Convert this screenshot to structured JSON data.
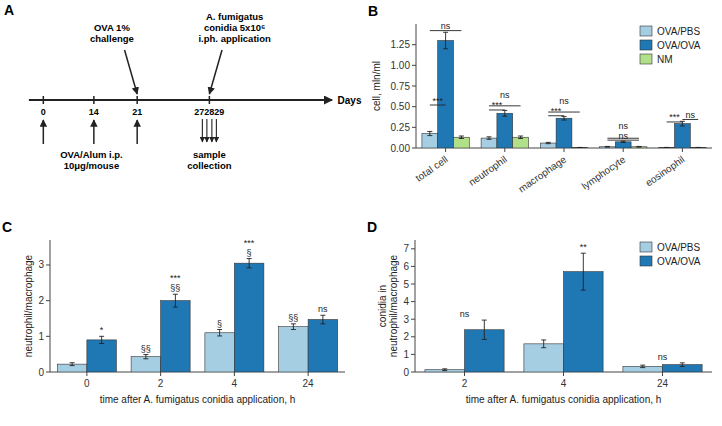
{
  "chart_data": [
    {
      "type": "timeline",
      "title": "A",
      "xlabel": "Days",
      "categories": [
        "0",
        "14",
        "21",
        "272829"
      ],
      "annotations": [
        {
          "text": "OVA 1%\nchallenge",
          "x": [
            "21"
          ],
          "position": "above"
        },
        {
          "text": "A. fumigatus\nconidia 5x10⁶\ni.ph. application",
          "x": [
            "272829"
          ],
          "position": "above"
        },
        {
          "text": "OVA/Alum i.p.\n10μg/mouse",
          "x": [
            "0",
            "14",
            "21"
          ],
          "position": "below"
        },
        {
          "text": "sample\ncollection",
          "x": [
            "272829"
          ],
          "position": "below"
        }
      ]
    },
    {
      "type": "bar",
      "title": "B",
      "ylabel": "cell, mln/ml",
      "categories": [
        "total cell",
        "neutrophil",
        "macrophage",
        "lymphocyte",
        "eosinophil"
      ],
      "series": [
        {
          "name": "OVA/PBS",
          "color": "#a6cee3",
          "values": [
            0.175,
            0.12,
            0.06,
            0.015,
            0.005
          ],
          "errors": [
            0.025,
            0.015,
            0.008,
            0.004,
            0.002
          ]
        },
        {
          "name": "OVA/OVA",
          "color": "#1f78b4",
          "values": [
            1.3,
            0.42,
            0.36,
            0.075,
            0.295
          ],
          "errors": [
            0.1,
            0.035,
            0.022,
            0.008,
            0.028
          ]
        },
        {
          "name": "NM",
          "color": "#b2df8a",
          "values": [
            0.13,
            0.13,
            0.005,
            0.015,
            0.005
          ],
          "errors": [
            0.015,
            0.015,
            0.002,
            0.004,
            0.002
          ]
        }
      ],
      "ylim": [
        0,
        1.5
      ],
      "yticks": [
        {
          "value": 0,
          "label": "0.00"
        },
        0.25,
        {
          "value": 0.5,
          "label": "0.50"
        },
        0.75,
        {
          "value": 1,
          "label": "1.00"
        },
        1.25
      ],
      "legend": "upper right",
      "annotations": [
        {
          "text": "***",
          "x": "total cell",
          "between": [
            "OVA/PBS",
            "OVA/OVA"
          ],
          "y": 0.52
        },
        {
          "text": "ns",
          "x": "total cell",
          "between": [
            "OVA/PBS",
            "NM"
          ],
          "y": 1.42
        },
        {
          "text": "***",
          "x": "neutrophil",
          "between": [
            "OVA/PBS",
            "OVA/OVA"
          ],
          "y": 0.46
        },
        {
          "text": "ns",
          "x": "neutrophil",
          "between": [
            "OVA/PBS",
            "NM"
          ],
          "y": 0.51
        },
        {
          "text": "***",
          "x": "macrophage",
          "between": [
            "OVA/PBS",
            "OVA/OVA"
          ],
          "y": 0.39
        },
        {
          "text": "ns",
          "x": "macrophage",
          "between": [
            "OVA/PBS",
            "NM"
          ],
          "y": 0.435
        },
        {
          "text": "ns",
          "x": "lymphocyte",
          "between": [
            "OVA/PBS",
            "NM"
          ],
          "y": 0.095
        },
        {
          "text": "ns",
          "x": "lymphocyte",
          "between": [
            "OVA/PBS",
            "NM"
          ],
          "y": 0.118
        },
        {
          "text": "***",
          "x": "eosinophil",
          "between": [
            "OVA/PBS",
            "OVA/OVA"
          ],
          "y": 0.315
        },
        {
          "text": "ns",
          "x": "eosinophil",
          "between": [
            "OVA/OVA",
            "NM"
          ],
          "y": 0.345
        }
      ]
    },
    {
      "type": "bar",
      "title": "C",
      "ylabel": "neutrophil/macrophage",
      "xlabel": "time after A. fumigatus conidia application, h",
      "categories": [
        "0",
        "2",
        "4",
        "24"
      ],
      "series": [
        {
          "name": "OVA/PBS",
          "color": "#a6cee3",
          "values": [
            0.22,
            0.43,
            1.1,
            1.27
          ],
          "errors": [
            0.04,
            0.06,
            0.09,
            0.08
          ]
        },
        {
          "name": "OVA/OVA",
          "color": "#1f78b4",
          "values": [
            0.9,
            2.0,
            3.05,
            1.47
          ],
          "errors": [
            0.1,
            0.18,
            0.13,
            0.12
          ]
        }
      ],
      "ylim": [
        0,
        3.7
      ],
      "yticks": [
        0,
        1,
        2,
        3
      ],
      "annotations": [
        {
          "text": "*",
          "x": "0",
          "series": "OVA/OVA"
        },
        {
          "text": "§§",
          "x": "2",
          "series": "OVA/PBS"
        },
        {
          "text": "§§",
          "x": "2",
          "series": "OVA/OVA"
        },
        {
          "text": "***",
          "x": "2",
          "series": "OVA/OVA"
        },
        {
          "text": "§",
          "x": "4",
          "series": "OVA/PBS"
        },
        {
          "text": "§",
          "x": "4",
          "series": "OVA/OVA"
        },
        {
          "text": "***",
          "x": "4",
          "series": "OVA/OVA"
        },
        {
          "text": "§§",
          "x": "24",
          "series": "OVA/PBS"
        },
        {
          "text": "ns",
          "x": "24",
          "series": "OVA/OVA"
        }
      ]
    },
    {
      "type": "bar",
      "title": "D",
      "ylabel": "conidia in\nneutrophil/macrophage",
      "xlabel": "time after A. fumigatus conidia application, h",
      "categories": [
        "2",
        "4",
        "24"
      ],
      "series": [
        {
          "name": "OVA/PBS",
          "color": "#a6cee3",
          "values": [
            0.13,
            1.6,
            0.32
          ],
          "errors": [
            0.05,
            0.22,
            0.07
          ]
        },
        {
          "name": "OVA/OVA",
          "color": "#1f78b4",
          "values": [
            2.4,
            5.7,
            0.42
          ],
          "errors": [
            0.55,
            1.05,
            0.1
          ]
        }
      ],
      "ylim": [
        0,
        7.5
      ],
      "yticks": [
        0,
        1,
        2,
        3,
        4,
        5,
        6,
        7
      ],
      "legend": "upper right",
      "annotations": [
        {
          "text": "ns",
          "x": "2"
        },
        {
          "text": "**",
          "x": "4",
          "series": "OVA/OVA"
        },
        {
          "text": "ns",
          "x": "24"
        }
      ]
    }
  ]
}
